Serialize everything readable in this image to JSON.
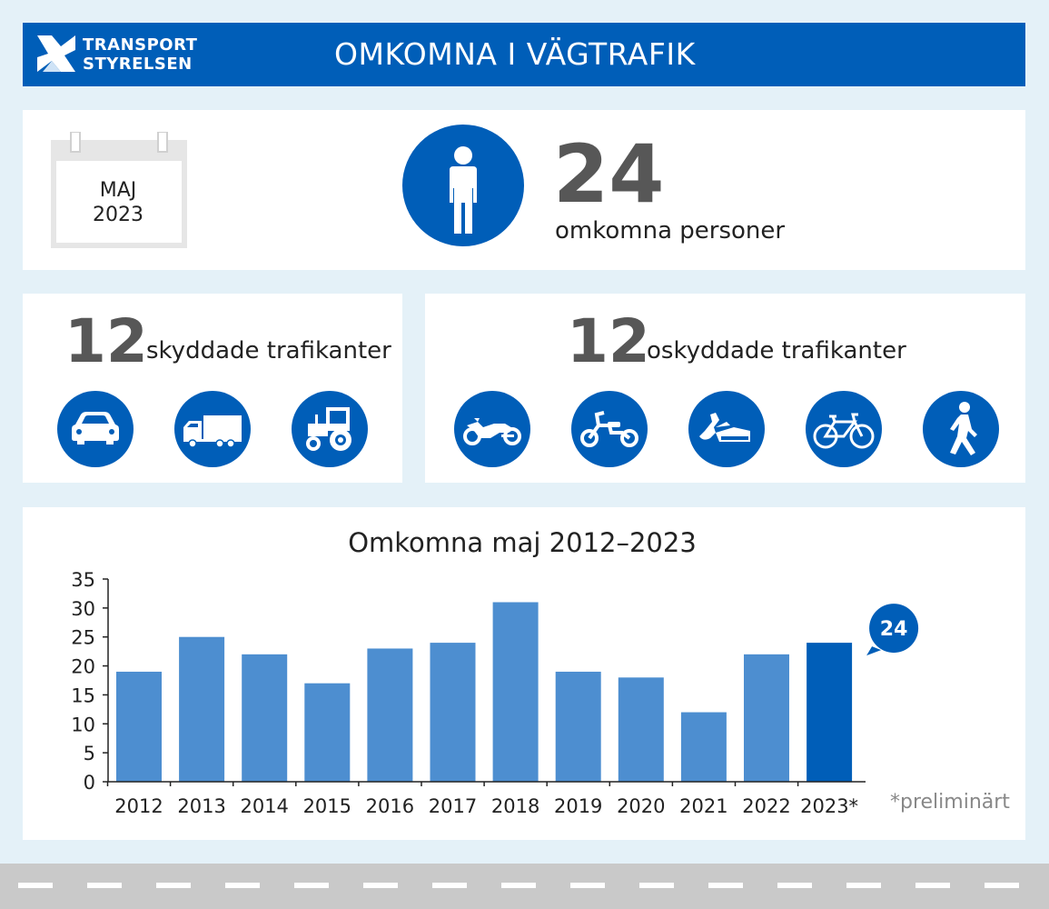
{
  "header": {
    "logo_line1": "TRANSPORT",
    "logo_line2": "STYRELSEN",
    "title": "OMKOMNA I VÄGTRAFIK"
  },
  "summary": {
    "month": "MAJ",
    "year": "2023",
    "total": "24",
    "total_label": "omkomna personer"
  },
  "protected": {
    "count": "12",
    "label": "skyddade trafikanter",
    "icons": [
      "car-icon",
      "truck-icon",
      "tractor-icon"
    ]
  },
  "unprotected": {
    "count": "12",
    "label": "oskyddade trafikanter",
    "icons": [
      "motorcycle-icon",
      "moped-icon",
      "snowmobile-icon",
      "bicycle-icon",
      "pedestrian-icon"
    ]
  },
  "colors": {
    "brand": "#005eb8",
    "bar": "#4d8ed0",
    "bar_highlight": "#005eb8",
    "background": "#e4f1f8"
  },
  "chart_data": {
    "type": "bar",
    "title": "Omkomna maj 2012–2023",
    "categories": [
      "2012",
      "2013",
      "2014",
      "2015",
      "2016",
      "2017",
      "2018",
      "2019",
      "2020",
      "2021",
      "2022",
      "2023*"
    ],
    "values": [
      19,
      25,
      22,
      17,
      23,
      24,
      31,
      19,
      18,
      12,
      22,
      24
    ],
    "ylim": [
      0,
      35
    ],
    "yticks": [
      "0",
      "5",
      "10",
      "15",
      "20",
      "25",
      "30",
      "35"
    ],
    "grid": false,
    "highlight_index": 11,
    "callout": "24",
    "footnote": "*preliminärt"
  }
}
